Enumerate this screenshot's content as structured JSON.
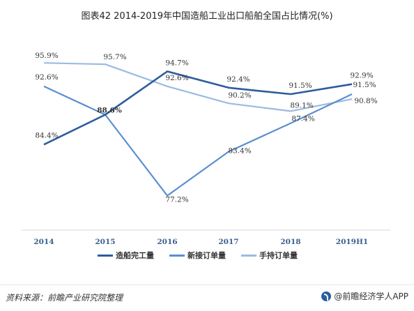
{
  "title": "图表42  2014-2019年中国造船工业出口船舶全国占比情况(%)",
  "footer": {
    "source": "资料来源：前瞻产业研究院整理",
    "brand": "@前瞻经济学人APP"
  },
  "chart_data": {
    "type": "line",
    "categories": [
      "2014",
      "2015",
      "2016",
      "2017",
      "2018",
      "2019H1"
    ],
    "ylim": [
      75,
      97
    ],
    "grid": false,
    "legend_position": "bottom",
    "series": [
      {
        "name": "造船完工量",
        "color": "#2e5c9e",
        "values": [
          84.4,
          88.6,
          94.7,
          92.4,
          91.5,
          92.9
        ]
      },
      {
        "name": "新接订单量",
        "color": "#5b8fcf",
        "values": [
          92.6,
          88.6,
          77.2,
          83.4,
          87.4,
          91.5
        ]
      },
      {
        "name": "手持订单量",
        "color": "#9bbbe3",
        "values": [
          95.9,
          95.7,
          92.6,
          90.2,
          89.1,
          90.8
        ]
      }
    ],
    "data_labels": [
      [
        "84.4%",
        "88.6%",
        "94.7%",
        "92.4%",
        "91.5%",
        "92.9%"
      ],
      [
        "92.6%",
        "88.6%",
        "77.2%",
        "83.4%",
        "87.4%",
        "91.5%"
      ],
      [
        "95.9%",
        "95.7%",
        "92.6%",
        "90.2%",
        "89.1%",
        "90.8%"
      ]
    ]
  }
}
